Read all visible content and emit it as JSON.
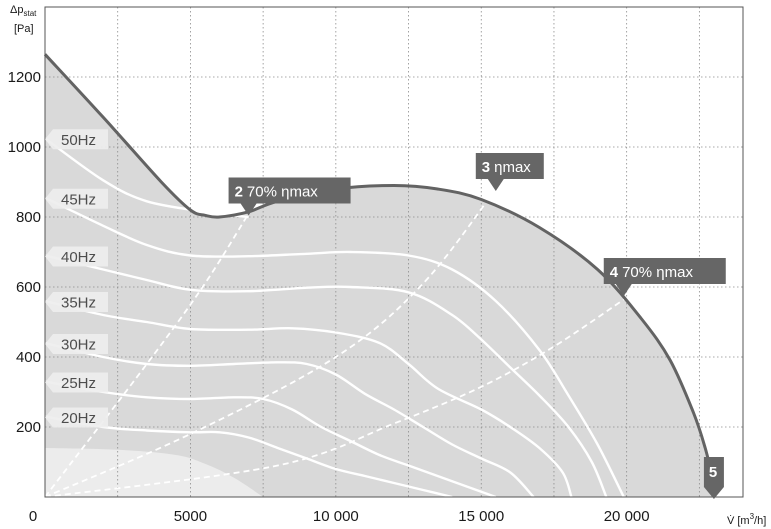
{
  "chart_data": {
    "type": "line",
    "xlabel": {
      "symbol": "V̇",
      "unit": "[m",
      "unit_sup": "3",
      "unit_end": "/h]"
    },
    "ylabel": {
      "symbol": "Δp",
      "symbol_sub": "stat",
      "unit": "[Pa]"
    },
    "xlim": [
      0,
      24000
    ],
    "ylim": [
      0,
      1400
    ],
    "x_ticks": [
      {
        "value": 0,
        "label": "0"
      },
      {
        "value": 5000,
        "label": "5000"
      },
      {
        "value": 10000,
        "label": "10 000"
      },
      {
        "value": 15000,
        "label": "15 000"
      },
      {
        "value": 20000,
        "label": "20 000"
      }
    ],
    "x_grid": [
      0,
      2500,
      5000,
      7500,
      10000,
      12500,
      15000,
      17500,
      20000,
      22500,
      24000
    ],
    "y_ticks": [
      200,
      400,
      600,
      800,
      1000,
      1200
    ],
    "y_grid": [
      0,
      200,
      400,
      600,
      800,
      1000,
      1200,
      1400
    ],
    "grid": true,
    "envelope": {
      "points": [
        [
          0,
          1265
        ],
        [
          2000,
          1085
        ],
        [
          4000,
          900
        ],
        [
          5000,
          820
        ],
        [
          5500,
          805
        ],
        [
          6000,
          800
        ],
        [
          7000,
          815
        ],
        [
          8000,
          845
        ],
        [
          10000,
          880
        ],
        [
          12000,
          890
        ],
        [
          13500,
          880
        ],
        [
          15000,
          850
        ],
        [
          17000,
          770
        ],
        [
          19000,
          650
        ],
        [
          20500,
          510
        ],
        [
          21500,
          390
        ],
        [
          22300,
          240
        ],
        [
          22700,
          140
        ],
        [
          23000,
          40
        ]
      ]
    },
    "inner_zone": {
      "points": [
        [
          0,
          140
        ],
        [
          2500,
          135
        ],
        [
          4500,
          120
        ],
        [
          5500,
          95
        ],
        [
          6500,
          55
        ],
        [
          7500,
          0
        ]
      ]
    },
    "series": [
      {
        "name": "50Hz",
        "points": [
          [
            0,
            1025
          ],
          [
            2000,
            905
          ],
          [
            3500,
            845
          ],
          [
            5500,
            815
          ],
          [
            7000,
            800
          ]
        ]
      },
      {
        "name": "45Hz",
        "points": [
          [
            0,
            855
          ],
          [
            2000,
            775
          ],
          [
            3500,
            720
          ],
          [
            5000,
            690
          ],
          [
            7000,
            688
          ],
          [
            9000,
            695
          ],
          [
            10500,
            700
          ],
          [
            12500,
            690
          ],
          [
            14000,
            650
          ],
          [
            15500,
            560
          ],
          [
            17000,
            420
          ],
          [
            18000,
            290
          ],
          [
            19000,
            150
          ],
          [
            19900,
            0
          ]
        ]
      },
      {
        "name": "40Hz",
        "points": [
          [
            0,
            690
          ],
          [
            2000,
            650
          ],
          [
            3500,
            620
          ],
          [
            5000,
            592
          ],
          [
            7000,
            588
          ],
          [
            9000,
            598
          ],
          [
            10500,
            600
          ],
          [
            12500,
            585
          ],
          [
            14000,
            520
          ],
          [
            15000,
            450
          ],
          [
            16000,
            370
          ],
          [
            17000,
            290
          ],
          [
            18000,
            200
          ],
          [
            18800,
            100
          ],
          [
            19300,
            0
          ]
        ]
      },
      {
        "name": "35Hz",
        "points": [
          [
            0,
            560
          ],
          [
            2000,
            520
          ],
          [
            3500,
            500
          ],
          [
            5000,
            480
          ],
          [
            7000,
            478
          ],
          [
            8500,
            482
          ],
          [
            10000,
            470
          ],
          [
            11500,
            440
          ],
          [
            12500,
            380
          ],
          [
            13500,
            310
          ],
          [
            15000,
            250
          ],
          [
            16000,
            200
          ],
          [
            17000,
            140
          ],
          [
            17800,
            70
          ],
          [
            18100,
            0
          ]
        ]
      },
      {
        "name": "30Hz",
        "points": [
          [
            0,
            440
          ],
          [
            2000,
            400
          ],
          [
            3500,
            380
          ],
          [
            5000,
            375
          ],
          [
            6500,
            380
          ],
          [
            8000,
            385
          ],
          [
            9000,
            380
          ],
          [
            10000,
            350
          ],
          [
            11000,
            295
          ],
          [
            12000,
            250
          ],
          [
            13000,
            200
          ],
          [
            14000,
            150
          ],
          [
            15000,
            110
          ],
          [
            16000,
            70
          ],
          [
            16800,
            0
          ]
        ]
      },
      {
        "name": "25Hz",
        "points": [
          [
            0,
            330
          ],
          [
            2000,
            300
          ],
          [
            3500,
            285
          ],
          [
            5000,
            280
          ],
          [
            6500,
            285
          ],
          [
            7500,
            280
          ],
          [
            8500,
            250
          ],
          [
            9500,
            200
          ],
          [
            10500,
            160
          ],
          [
            11500,
            120
          ],
          [
            12500,
            90
          ],
          [
            13500,
            60
          ],
          [
            14500,
            30
          ],
          [
            15500,
            0
          ]
        ]
      },
      {
        "name": "20Hz",
        "points": [
          [
            0,
            230
          ],
          [
            2000,
            200
          ],
          [
            3500,
            190
          ],
          [
            5000,
            185
          ],
          [
            6000,
            185
          ],
          [
            7000,
            170
          ],
          [
            8000,
            140
          ],
          [
            9000,
            110
          ],
          [
            10000,
            80
          ],
          [
            11000,
            60
          ],
          [
            12000,
            40
          ],
          [
            13000,
            20
          ],
          [
            14000,
            0
          ]
        ]
      }
    ],
    "efficiency_lines": [
      {
        "name": "2 70% ηmax",
        "points": [
          [
            0,
            0
          ],
          [
            3500,
            380
          ],
          [
            5500,
            610
          ],
          [
            7000,
            810
          ]
        ]
      },
      {
        "name": "3 ηmax",
        "points": [
          [
            0,
            0
          ],
          [
            5000,
            180
          ],
          [
            10000,
            400
          ],
          [
            13000,
            610
          ],
          [
            15500,
            880
          ]
        ]
      },
      {
        "name": "4 70% ηmax",
        "points": [
          [
            0,
            0
          ],
          [
            8000,
            90
          ],
          [
            12000,
            210
          ],
          [
            15000,
            315
          ],
          [
            17500,
            430
          ],
          [
            20000,
            570
          ]
        ]
      }
    ],
    "callouts": [
      {
        "num": "2",
        "text": "70% ηmax",
        "target": [
          7000,
          810
        ]
      },
      {
        "num": "3",
        "text": "ηmax",
        "target": [
          15500,
          880
        ]
      },
      {
        "num": "4",
        "text": "70% ηmax",
        "target": [
          19900,
          580
        ]
      },
      {
        "num": "5",
        "text": "",
        "target": [
          23000,
          0
        ]
      }
    ],
    "colors": {
      "envelope_fill": "#d9d9d9",
      "envelope_line": "#636363",
      "inner_zone": "#ececec",
      "curves": "#ffffff",
      "callout_bg": "#666666",
      "hz_label_bg": "#eeeeee",
      "grid": "#8c8c8c"
    }
  }
}
